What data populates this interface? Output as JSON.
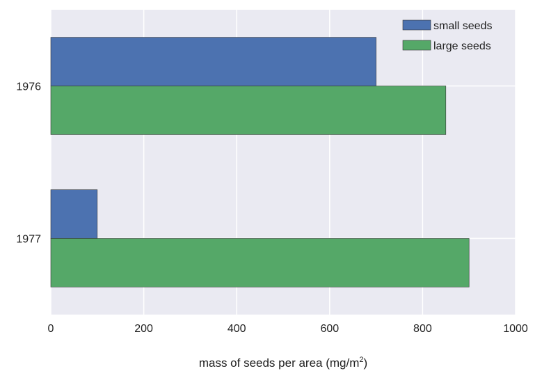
{
  "chart_data": {
    "type": "bar",
    "orientation": "horizontal",
    "categories": [
      "1976",
      "1977"
    ],
    "series": [
      {
        "name": "small seeds",
        "values": [
          700,
          100
        ],
        "color": "#4C72B0"
      },
      {
        "name": "large seeds",
        "values": [
          850,
          900
        ],
        "color": "#55A868"
      }
    ],
    "xlabel": "mass of seeds per area (mg/m",
    "xlabel_superscript": "2",
    "xlabel_suffix": ")",
    "xlim": [
      0,
      1000
    ],
    "xticks": [
      0,
      200,
      400,
      600,
      800,
      1000
    ],
    "xtick_labels": [
      "0",
      "200",
      "400",
      "600",
      "800",
      "1000"
    ],
    "grid": true,
    "legend_position": "top-right",
    "background": "#EAEAF2"
  }
}
